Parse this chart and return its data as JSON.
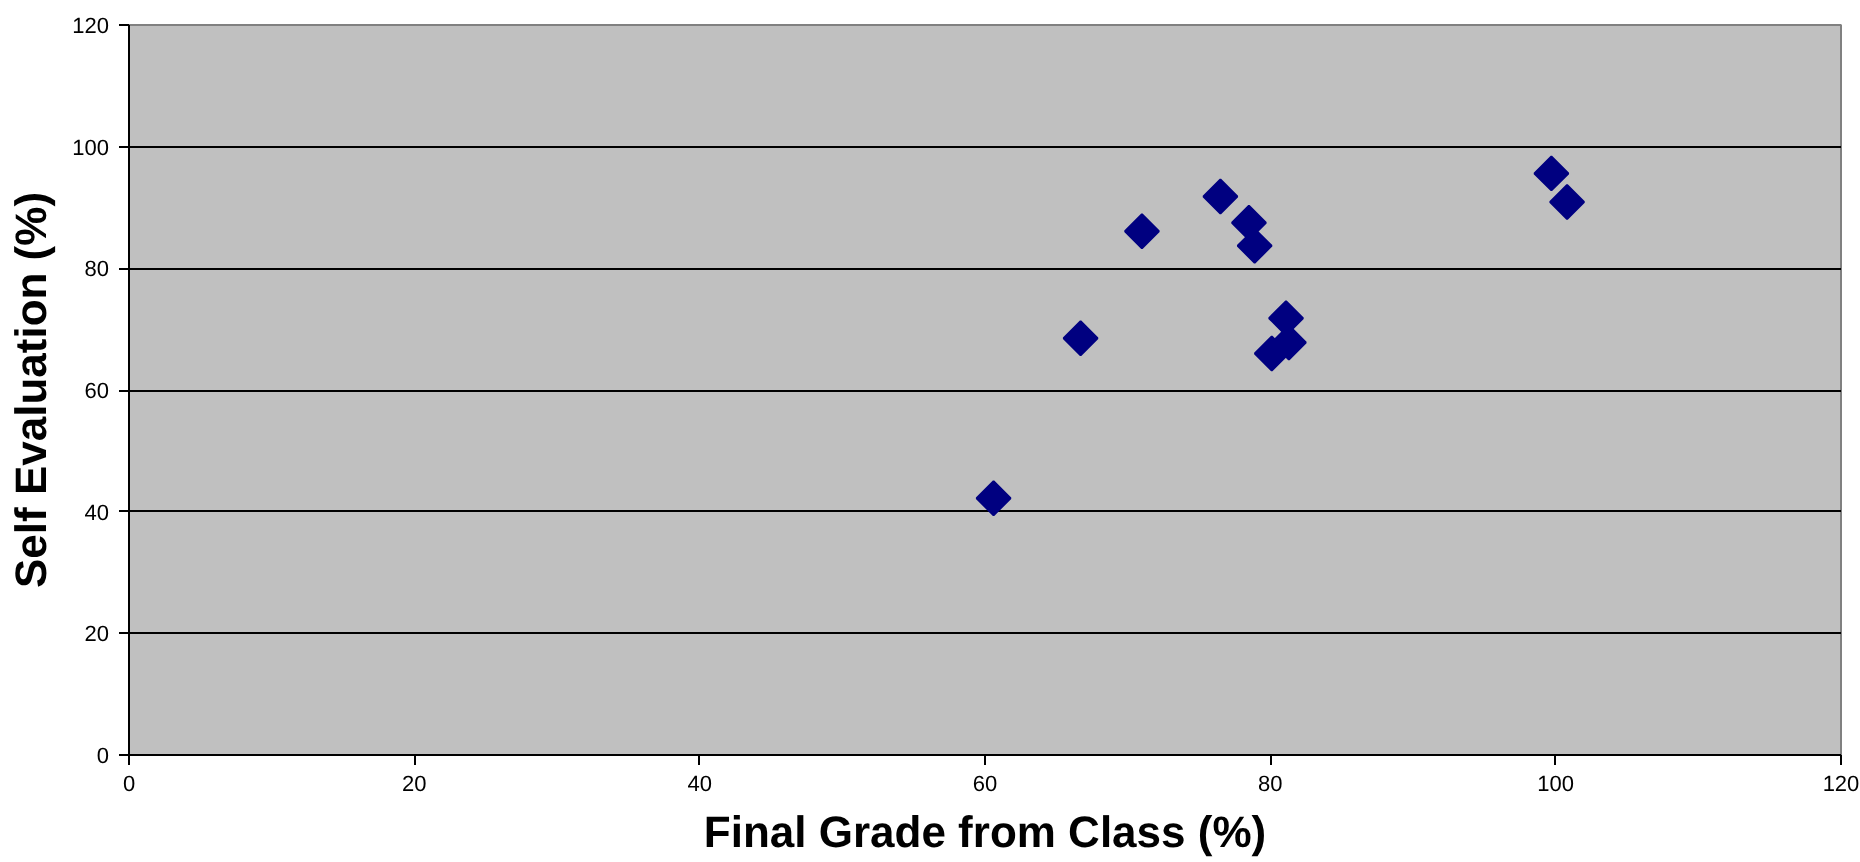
{
  "chart_data": {
    "type": "scatter",
    "xlabel": "Final Grade from Class (%)",
    "ylabel": "Self Evaluation (%)",
    "x": [
      60.6,
      66.7,
      71.0,
      76.5,
      78.5,
      78.9,
      81.1,
      81.3,
      80.1,
      99.7,
      100.8
    ],
    "series": [
      {
        "color": "#000080",
        "values": [
          42.2,
          68.5,
          86.1,
          91.8,
          87.5,
          83.7,
          71.8,
          67.8,
          66.0,
          95.6,
          90.9
        ]
      }
    ],
    "xlim": [
      0,
      120
    ],
    "ylim": [
      0,
      120
    ],
    "xticks": [
      0,
      20,
      40,
      60,
      80,
      100,
      120
    ],
    "yticks": [
      0,
      20,
      40,
      60,
      80,
      100,
      120
    ],
    "grid": "y",
    "marker": "diamond"
  }
}
